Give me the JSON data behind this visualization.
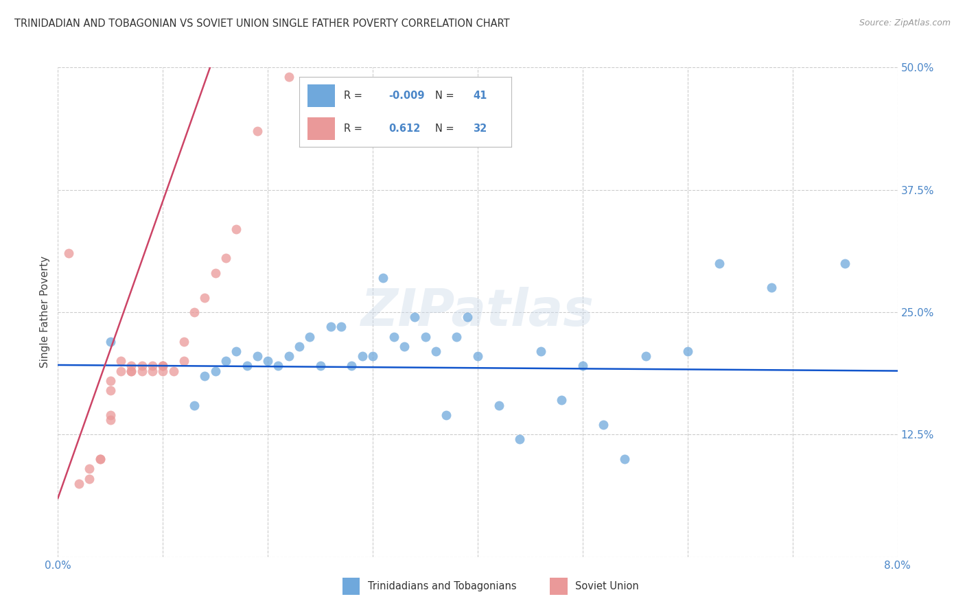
{
  "title": "TRINIDADIAN AND TOBAGONIAN VS SOVIET UNION SINGLE FATHER POVERTY CORRELATION CHART",
  "source": "Source: ZipAtlas.com",
  "ylabel": "Single Father Poverty",
  "legend_label1": "Trinidadians and Tobagonians",
  "legend_label2": "Soviet Union",
  "xlim": [
    0.0,
    0.08
  ],
  "ylim": [
    0.0,
    0.5
  ],
  "x_ticks": [
    0.0,
    0.01,
    0.02,
    0.03,
    0.04,
    0.05,
    0.06,
    0.07,
    0.08
  ],
  "x_tick_labels": [
    "0.0%",
    "",
    "",
    "",
    "",
    "",
    "",
    "",
    "8.0%"
  ],
  "y_ticks": [
    0.0,
    0.125,
    0.25,
    0.375,
    0.5
  ],
  "y_tick_labels": [
    "",
    "12.5%",
    "25.0%",
    "37.5%",
    "50.0%"
  ],
  "blue_color": "#6fa8dc",
  "pink_color": "#ea9999",
  "blue_line_color": "#1155cc",
  "pink_line_color": "#cc4466",
  "legend_R1": "-0.009",
  "legend_N1": "41",
  "legend_R2": "0.612",
  "legend_N2": "32",
  "watermark": "ZIPatlas",
  "blue_scatter_x": [
    0.005,
    0.013,
    0.014,
    0.015,
    0.016,
    0.017,
    0.018,
    0.019,
    0.02,
    0.021,
    0.022,
    0.023,
    0.024,
    0.025,
    0.026,
    0.027,
    0.028,
    0.029,
    0.03,
    0.031,
    0.032,
    0.033,
    0.034,
    0.035,
    0.036,
    0.037,
    0.038,
    0.039,
    0.04,
    0.042,
    0.044,
    0.046,
    0.048,
    0.05,
    0.052,
    0.054,
    0.056,
    0.06,
    0.063,
    0.068,
    0.075
  ],
  "blue_scatter_y": [
    0.22,
    0.155,
    0.185,
    0.19,
    0.2,
    0.21,
    0.195,
    0.205,
    0.2,
    0.195,
    0.205,
    0.215,
    0.225,
    0.195,
    0.235,
    0.235,
    0.195,
    0.205,
    0.205,
    0.285,
    0.225,
    0.215,
    0.245,
    0.225,
    0.21,
    0.145,
    0.225,
    0.245,
    0.205,
    0.155,
    0.12,
    0.21,
    0.16,
    0.195,
    0.135,
    0.1,
    0.205,
    0.21,
    0.3,
    0.275,
    0.3
  ],
  "pink_scatter_x": [
    0.001,
    0.002,
    0.003,
    0.003,
    0.004,
    0.004,
    0.005,
    0.005,
    0.005,
    0.005,
    0.006,
    0.006,
    0.007,
    0.007,
    0.007,
    0.008,
    0.008,
    0.009,
    0.009,
    0.01,
    0.01,
    0.01,
    0.011,
    0.012,
    0.012,
    0.013,
    0.014,
    0.015,
    0.016,
    0.017,
    0.019,
    0.022
  ],
  "pink_scatter_y": [
    0.31,
    0.075,
    0.08,
    0.09,
    0.1,
    0.1,
    0.14,
    0.145,
    0.17,
    0.18,
    0.19,
    0.2,
    0.19,
    0.19,
    0.195,
    0.195,
    0.19,
    0.195,
    0.19,
    0.195,
    0.19,
    0.195,
    0.19,
    0.2,
    0.22,
    0.25,
    0.265,
    0.29,
    0.305,
    0.335,
    0.435,
    0.49
  ],
  "blue_trend_x": [
    0.0,
    0.08
  ],
  "blue_trend_y": [
    0.196,
    0.19
  ],
  "pink_trend_x": [
    0.0,
    0.0145
  ],
  "pink_trend_y": [
    0.06,
    0.5
  ]
}
